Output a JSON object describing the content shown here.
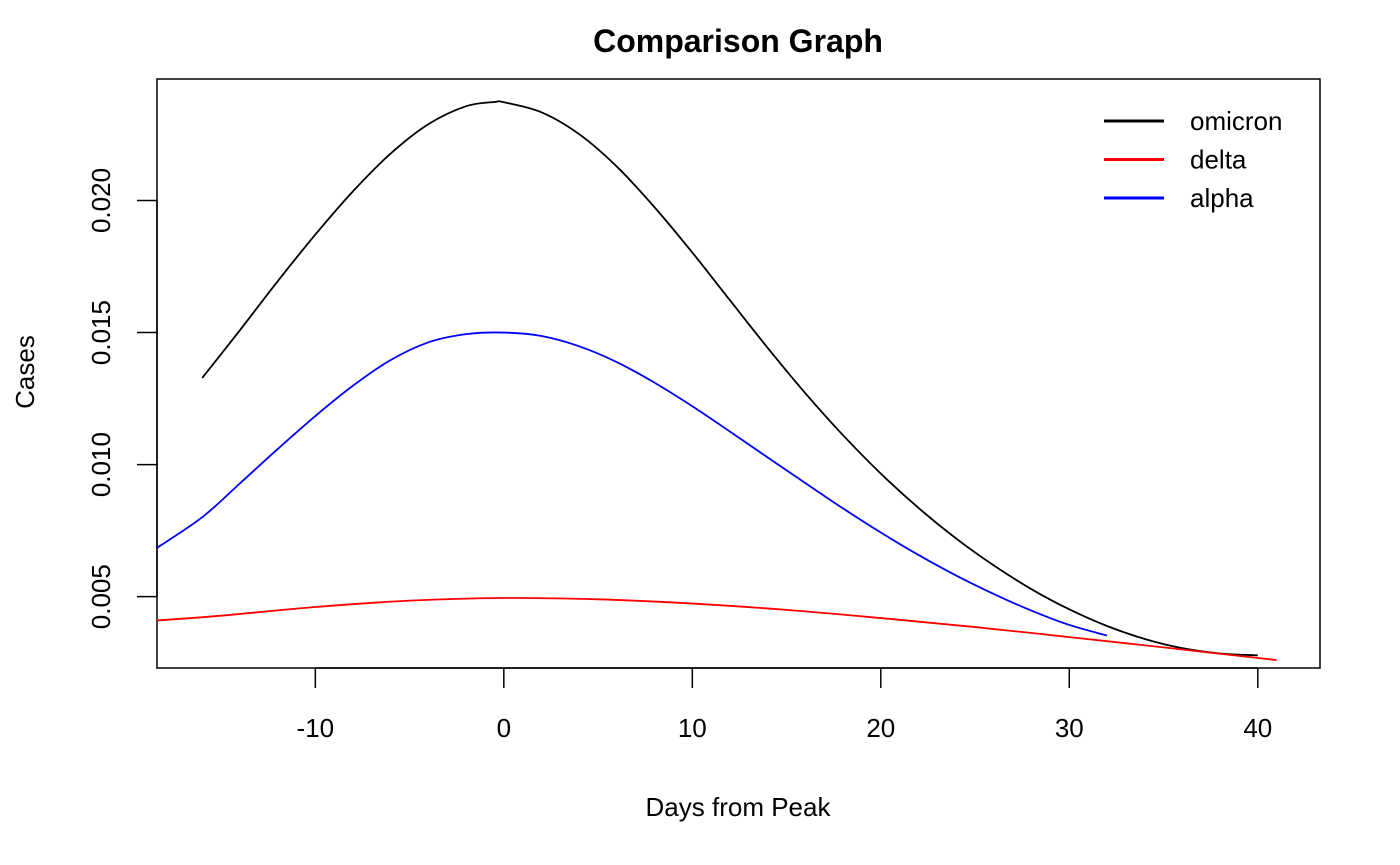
{
  "chart_data": {
    "type": "line",
    "title": "Comparison Graph",
    "xlabel": "Days from Peak",
    "ylabel": "Cases",
    "xlim": [
      -18.4,
      43.3
    ],
    "ylim": [
      0.0023,
      0.0246
    ],
    "x_ticks": [
      -10,
      0,
      10,
      20,
      30,
      40
    ],
    "x_tick_labels": [
      "-10",
      "0",
      "10",
      "20",
      "30",
      "40"
    ],
    "y_ticks": [
      0.005,
      0.01,
      0.015,
      0.02
    ],
    "y_tick_labels": [
      "0.005",
      "0.010",
      "0.015",
      "0.020"
    ],
    "grid": false,
    "legend_position": "top-right",
    "series": [
      {
        "name": "omicron",
        "color": "#000000",
        "x": [
          -16,
          -14,
          -12,
          -10,
          -8,
          -6,
          -4,
          -2,
          -0.5,
          0,
          2,
          4,
          6,
          8,
          10,
          12,
          14,
          16,
          18,
          20,
          22,
          24,
          26,
          28,
          30,
          32,
          34,
          36,
          38,
          40
        ],
        "y": [
          0.01328,
          0.01509,
          0.01694,
          0.01871,
          0.02035,
          0.02178,
          0.02289,
          0.02357,
          0.02373,
          0.02372,
          0.02334,
          0.02251,
          0.02128,
          0.01974,
          0.01803,
          0.01622,
          0.01442,
          0.0127,
          0.01111,
          0.00966,
          0.00836,
          0.0072,
          0.00618,
          0.00528,
          0.00452,
          0.00389,
          0.0034,
          0.00305,
          0.00285,
          0.00278
        ]
      },
      {
        "name": "delta",
        "color": "#ff0000",
        "x": [
          -18.4,
          -15,
          -10,
          -5,
          0,
          5,
          10,
          15,
          20,
          25,
          30,
          35,
          40,
          41
        ],
        "y": [
          0.0041,
          0.00428,
          0.00461,
          0.00485,
          0.00495,
          0.0049,
          0.00474,
          0.0045,
          0.00419,
          0.00385,
          0.00347,
          0.00308,
          0.00268,
          0.0026
        ]
      },
      {
        "name": "alpha",
        "color": "#0000ff",
        "x": [
          -18.4,
          -16,
          -14,
          -12,
          -10,
          -8,
          -6,
          -4,
          -2,
          0,
          2,
          4,
          6,
          8,
          10,
          12,
          14,
          16,
          18,
          20,
          22,
          24,
          26,
          28,
          30,
          32
        ],
        "y": [
          0.00685,
          0.00801,
          0.00929,
          0.01059,
          0.01184,
          0.01299,
          0.01396,
          0.01463,
          0.01494,
          0.015,
          0.01487,
          0.01448,
          0.01388,
          0.0131,
          0.01221,
          0.01125,
          0.01027,
          0.0093,
          0.00834,
          0.00743,
          0.00658,
          0.0058,
          0.0051,
          0.00447,
          0.00393,
          0.00353
        ]
      }
    ]
  },
  "title": "Comparison Graph",
  "x_axis_label": "Days from Peak",
  "y_axis_label": "Cases"
}
